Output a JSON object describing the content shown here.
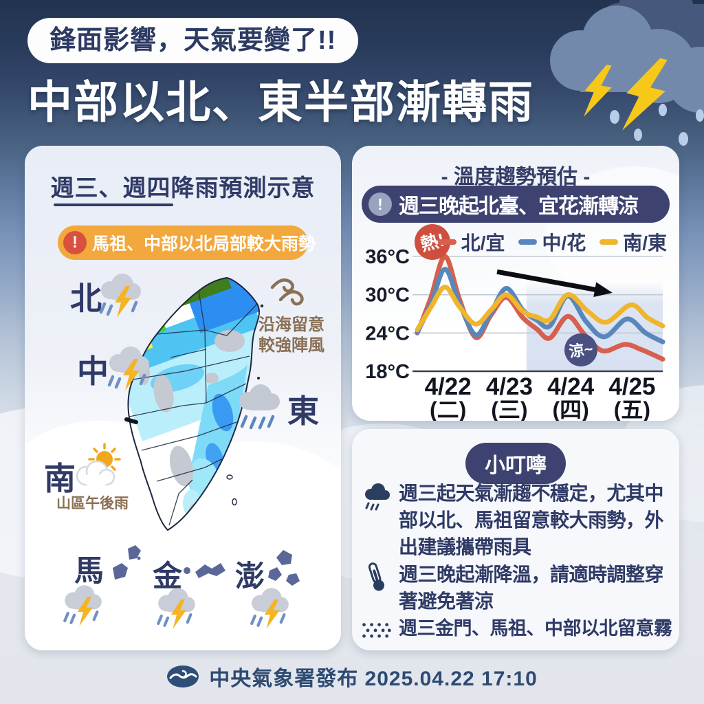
{
  "header": {
    "badge": "鋒面影響，天氣要變了!!",
    "title": "中部以北、東半部漸轉雨"
  },
  "rain_panel": {
    "title": "週三、週四降雨預測示意",
    "warning_icon": "exclamation-circle-icon",
    "warning": "馬祖、中部以北局部較大雨勢",
    "coast_note_line1": "沿海留意",
    "coast_note_line2": "較強陣風",
    "coast_icon": "wind-gust-icon",
    "regions": [
      {
        "label": "北",
        "icon": "storm-cloud-lightning-icon"
      },
      {
        "label": "中",
        "icon": "storm-cloud-lightning-icon"
      },
      {
        "label": "東",
        "icon": "rain-cloud-icon"
      },
      {
        "label": "南",
        "icon": "sun-behind-cloud-icon",
        "note": "山區午後雨"
      }
    ],
    "islands": [
      {
        "label": "馬",
        "icon": "storm-cloud-lightning-icon"
      },
      {
        "label": "金",
        "icon": "storm-cloud-lightning-icon"
      },
      {
        "label": "澎",
        "icon": "storm-cloud-lightning-icon"
      }
    ]
  },
  "temp_panel": {
    "title": "- 溫度趨勢預估 -",
    "subtitle_icon": "exclamation-circle-icon",
    "subtitle": "週三晚起北臺、宜花漸轉涼"
  },
  "tips_panel": {
    "title": "小叮嚀",
    "items": [
      {
        "icon": "rain-cloud-icon",
        "text": "週三起天氣漸趨不穩定，尤其中部以北、馬祖留意較大雨勢，外出建議攜帶雨具"
      },
      {
        "icon": "thermometer-icon",
        "text": "週三晚起漸降溫，請適時調整穿著避免著涼"
      },
      {
        "icon": "fog-icon",
        "text": "週三金門、馬祖、中部以北留意霧"
      }
    ]
  },
  "footer": {
    "agency_logo": "cwa-logo-icon",
    "text": "中央氣象署發布 2025.04.22 17:10"
  },
  "colors": {
    "navy_text": "#2f3a66",
    "pill_navy": "#3d4270",
    "warning_orange": "#f2a83d",
    "warning_red": "#d9503f",
    "brown_note": "#8a7055",
    "lightning_yellow": "#f5b422",
    "cool_shade": "#d9e2f2"
  },
  "chart_data": {
    "type": "line",
    "title": "溫度趨勢預估",
    "ylabel": "°C",
    "ylim": [
      18,
      38.5
    ],
    "xlim": [
      0,
      4
    ],
    "grid": true,
    "legend_position": "top",
    "y_ticks": [
      {
        "value": 36,
        "label": "36°C"
      },
      {
        "value": 30,
        "label": "30°C"
      },
      {
        "value": 24,
        "label": "24°C"
      },
      {
        "value": 18,
        "label": "18°C"
      }
    ],
    "x_ticks": [
      {
        "x": 0.5,
        "date": "4/22",
        "week": "(二)"
      },
      {
        "x": 1.5,
        "date": "4/23",
        "week": "(三)"
      },
      {
        "x": 2.5,
        "date": "4/24",
        "week": "(四)"
      },
      {
        "x": 3.5,
        "date": "4/25",
        "week": "(五)"
      }
    ],
    "legend": [
      {
        "name": "北/宜",
        "color": "#d65f4d"
      },
      {
        "name": "中/花",
        "color": "#5a87bb"
      },
      {
        "name": "南/東",
        "color": "#f0b52c"
      }
    ],
    "series": [
      {
        "name": "北/宜",
        "color": "#d65f4d",
        "points": [
          [
            0,
            24
          ],
          [
            0.22,
            29.5
          ],
          [
            0.45,
            36
          ],
          [
            0.68,
            29.5
          ],
          [
            0.95,
            23.3
          ],
          [
            1.2,
            26.8
          ],
          [
            1.45,
            29.6
          ],
          [
            1.72,
            26.4
          ],
          [
            1.95,
            24.6
          ],
          [
            2.16,
            23.2
          ],
          [
            2.45,
            26.6
          ],
          [
            2.72,
            23.8
          ],
          [
            3.02,
            21.2
          ],
          [
            3.38,
            22.2
          ],
          [
            3.65,
            21.4
          ],
          [
            4,
            19.9
          ]
        ]
      },
      {
        "name": "中/花",
        "color": "#5a87bb",
        "points": [
          [
            0,
            24.1
          ],
          [
            0.22,
            28.5
          ],
          [
            0.45,
            34
          ],
          [
            0.68,
            28.8
          ],
          [
            0.95,
            23.7
          ],
          [
            1.2,
            27.2
          ],
          [
            1.45,
            31
          ],
          [
            1.72,
            27.6
          ],
          [
            1.95,
            26
          ],
          [
            2.16,
            25.1
          ],
          [
            2.45,
            29.8
          ],
          [
            2.75,
            25.8
          ],
          [
            3.05,
            23.4
          ],
          [
            3.42,
            26.2
          ],
          [
            3.72,
            24
          ],
          [
            4,
            22.6
          ]
        ]
      },
      {
        "name": "南/東",
        "color": "#f0b52c",
        "points": [
          [
            0,
            24.5
          ],
          [
            0.22,
            28
          ],
          [
            0.45,
            31.2
          ],
          [
            0.68,
            28.2
          ],
          [
            0.95,
            25.4
          ],
          [
            1.2,
            27.6
          ],
          [
            1.45,
            30
          ],
          [
            1.72,
            27.4
          ],
          [
            1.95,
            26.5
          ],
          [
            2.16,
            26.1
          ],
          [
            2.45,
            30
          ],
          [
            2.78,
            27.4
          ],
          [
            3.08,
            25.7
          ],
          [
            3.48,
            28.4
          ],
          [
            3.75,
            26.4
          ],
          [
            4,
            25.1
          ]
        ]
      }
    ],
    "annotations": [
      {
        "text": "熱!",
        "type": "hot",
        "color": "#cf4f3e"
      },
      {
        "text": "涼~",
        "type": "cool",
        "color": "#4a5181"
      }
    ],
    "cool_region": {
      "x_start": 1.78,
      "x_end": 4,
      "y_top": 32.2
    },
    "trend_arrow": {
      "from": [
        1.3,
        33.6
      ],
      "to": [
        3.18,
        30.3
      ]
    }
  }
}
